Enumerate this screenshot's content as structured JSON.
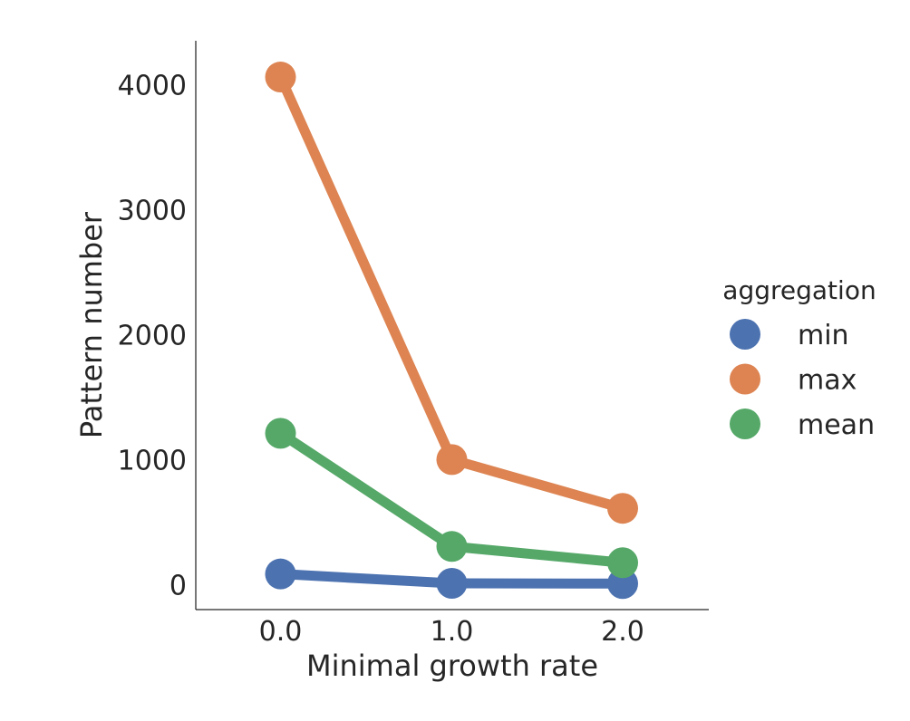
{
  "chart_data": {
    "type": "line",
    "x": [
      "0.0",
      "1.0",
      "2.0"
    ],
    "series": [
      {
        "name": "min",
        "values": [
          85,
          10,
          8
        ],
        "color": "#4c72b0"
      },
      {
        "name": "max",
        "values": [
          4060,
          1000,
          610
        ],
        "color": "#dd8452"
      },
      {
        "name": "mean",
        "values": [
          1210,
          305,
          175
        ],
        "color": "#55a868"
      }
    ],
    "xlabel": "Minimal growth rate",
    "ylabel": "Pattern number",
    "ylim": [
      -200,
      4350
    ],
    "yticks": [
      0,
      1000,
      2000,
      3000,
      4000
    ],
    "grid": false,
    "legend": {
      "title": "aggregation",
      "placement": "right"
    }
  }
}
